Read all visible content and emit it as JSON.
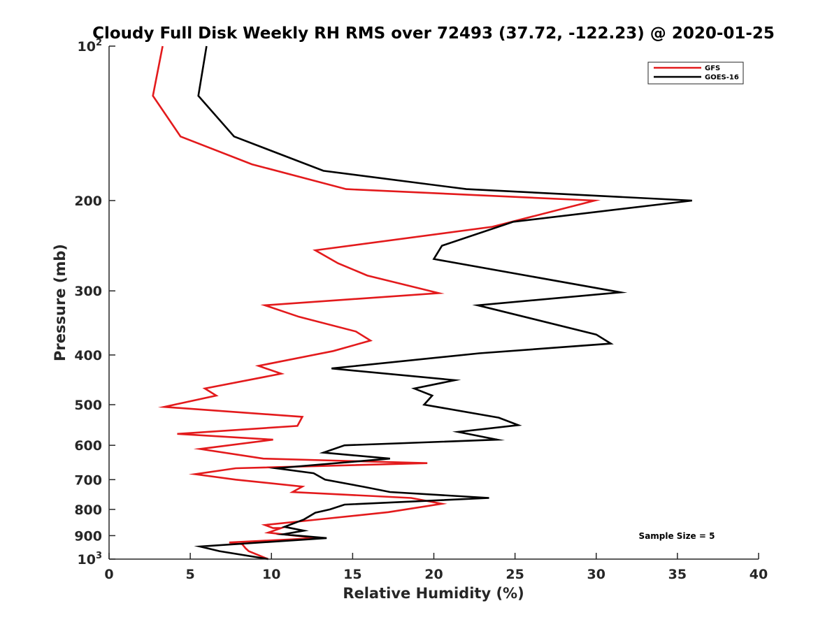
{
  "chart_data": {
    "type": "line",
    "title": "Cloudy Full Disk Weekly RH RMS over 72493 (37.72, -122.23) @ 2020-01-25",
    "xlabel": "Relative Humidity (%)",
    "ylabel": "Pressure (mb)",
    "xlim": [
      0,
      40
    ],
    "ylim": [
      100,
      1000
    ],
    "y_scale": "log",
    "y_reversed": true,
    "grid": false,
    "legend_position": "top-right",
    "x_ticks": [
      {
        "value": 0,
        "label": "0"
      },
      {
        "value": 5,
        "label": "5"
      },
      {
        "value": 10,
        "label": "10"
      },
      {
        "value": 15,
        "label": "15"
      },
      {
        "value": 20,
        "label": "20"
      },
      {
        "value": 25,
        "label": "25"
      },
      {
        "value": 30,
        "label": "30"
      },
      {
        "value": 35,
        "label": "35"
      },
      {
        "value": 40,
        "label": "40"
      }
    ],
    "y_ticks": [
      {
        "value": 100,
        "label": "10",
        "sup": "2"
      },
      {
        "value": 200,
        "label": "200",
        "sup": ""
      },
      {
        "value": 300,
        "label": "300",
        "sup": ""
      },
      {
        "value": 400,
        "label": "400",
        "sup": ""
      },
      {
        "value": 500,
        "label": "500",
        "sup": ""
      },
      {
        "value": 600,
        "label": "600",
        "sup": ""
      },
      {
        "value": 700,
        "label": "700",
        "sup": ""
      },
      {
        "value": 800,
        "label": "800",
        "sup": ""
      },
      {
        "value": 900,
        "label": "900",
        "sup": ""
      },
      {
        "value": 1000,
        "label": "10",
        "sup": "3"
      }
    ],
    "annotation": "Sample Size = 5",
    "series": [
      {
        "name": "GFS",
        "color": "#e31a1c",
        "points": [
          [
            3.3,
            100
          ],
          [
            2.7,
            125
          ],
          [
            4.4,
            150
          ],
          [
            8.8,
            170
          ],
          [
            14.6,
            190
          ],
          [
            29.9,
            200
          ],
          [
            23.6,
            225
          ],
          [
            12.7,
            250
          ],
          [
            14.1,
            265
          ],
          [
            15.9,
            280
          ],
          [
            20.3,
            303
          ],
          [
            9.6,
            320
          ],
          [
            11.7,
            337
          ],
          [
            15.2,
            360
          ],
          [
            16.1,
            375
          ],
          [
            13.8,
            393
          ],
          [
            9.2,
            420
          ],
          [
            10.6,
            435
          ],
          [
            5.9,
            465
          ],
          [
            6.6,
            480
          ],
          [
            3.4,
            505
          ],
          [
            11.9,
            528
          ],
          [
            11.6,
            550
          ],
          [
            4.2,
            570
          ],
          [
            10.1,
            585
          ],
          [
            5.6,
            610
          ],
          [
            9.5,
            637
          ],
          [
            19.6,
            650
          ],
          [
            7.8,
            665
          ],
          [
            5.3,
            683
          ],
          [
            7.8,
            700
          ],
          [
            11.9,
            722
          ],
          [
            11.3,
            740
          ],
          [
            18.6,
            760
          ],
          [
            20.5,
            780
          ],
          [
            17.2,
            810
          ],
          [
            13.2,
            835
          ],
          [
            9.6,
            858
          ],
          [
            10.1,
            870
          ],
          [
            10.6,
            870
          ],
          [
            9.8,
            888
          ],
          [
            12.8,
            910
          ],
          [
            7.4,
            928
          ],
          [
            8.2,
            935
          ],
          [
            8.4,
            952
          ],
          [
            8.6,
            965
          ],
          [
            9.8,
            1000
          ]
        ]
      },
      {
        "name": "GOES-16",
        "color": "#000000",
        "points": [
          [
            6.0,
            100
          ],
          [
            5.5,
            125
          ],
          [
            7.7,
            150
          ],
          [
            13.2,
            175
          ],
          [
            22.0,
            190
          ],
          [
            35.9,
            200
          ],
          [
            24.9,
            220
          ],
          [
            20.5,
            245
          ],
          [
            20.0,
            260
          ],
          [
            31.5,
            302
          ],
          [
            22.7,
            320
          ],
          [
            30.0,
            365
          ],
          [
            30.9,
            380
          ],
          [
            22.8,
            397
          ],
          [
            13.7,
            425
          ],
          [
            21.3,
            448
          ],
          [
            18.8,
            465
          ],
          [
            19.9,
            480
          ],
          [
            19.4,
            500
          ],
          [
            24.0,
            530
          ],
          [
            25.2,
            548
          ],
          [
            21.5,
            565
          ],
          [
            23.9,
            585
          ],
          [
            14.5,
            600
          ],
          [
            13.2,
            620
          ],
          [
            17.3,
            637
          ],
          [
            10.3,
            665
          ],
          [
            12.6,
            680
          ],
          [
            13.3,
            700
          ],
          [
            15.7,
            723
          ],
          [
            17.3,
            740
          ],
          [
            23.4,
            760
          ],
          [
            14.5,
            783
          ],
          [
            13.6,
            800
          ],
          [
            12.7,
            812
          ],
          [
            12.0,
            837
          ],
          [
            10.8,
            865
          ],
          [
            12.0,
            880
          ],
          [
            10.7,
            895
          ],
          [
            13.4,
            910
          ],
          [
            5.6,
            945
          ],
          [
            6.8,
            965
          ],
          [
            9.8,
            1000
          ]
        ]
      }
    ]
  }
}
